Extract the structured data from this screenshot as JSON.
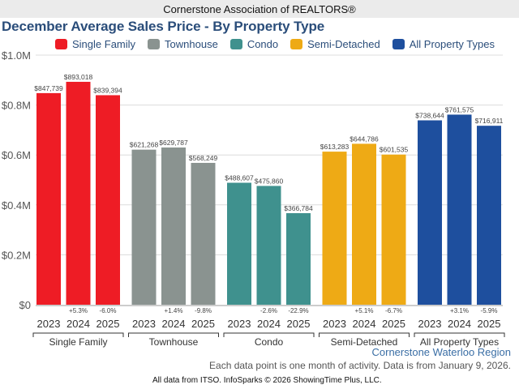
{
  "header": {
    "association": "Cornerstone Association of REALTORS®"
  },
  "footer": {
    "region": "Cornerstone Waterloo Region",
    "note": "Each data point is one month of activity. Data is from January 9, 2026.",
    "credit": "All data from ITSO. InfoSparks © 2026 ShowingTime Plus, LLC."
  },
  "chart_data": {
    "type": "bar",
    "title": "December Average Sales Price - By Property Type",
    "xlabel": "",
    "ylabel": "",
    "ylim": [
      0,
      1000000
    ],
    "yticks": [
      {
        "value": 0,
        "label": "$0"
      },
      {
        "value": 200000,
        "label": "$0.2M"
      },
      {
        "value": 400000,
        "label": "$0.4M"
      },
      {
        "value": 600000,
        "label": "$0.6M"
      },
      {
        "value": 800000,
        "label": "$0.8M"
      },
      {
        "value": 1000000,
        "label": "$1.0M"
      }
    ],
    "grid": true,
    "legend_position": "top",
    "categories": [
      "2023",
      "2024",
      "2025"
    ],
    "series": [
      {
        "name": "Single Family",
        "color": "#ee1c25",
        "values": [
          847739,
          893018,
          839394
        ],
        "labels": [
          "$847,739",
          "$893,018",
          "$839,394"
        ],
        "changes": [
          "",
          "+5.3%",
          "-6.0%"
        ]
      },
      {
        "name": "Townhouse",
        "color": "#8a9390",
        "values": [
          621268,
          629787,
          568249
        ],
        "labels": [
          "$621,268",
          "$629,787",
          "$568,249"
        ],
        "changes": [
          "",
          "+1.4%",
          "-9.8%"
        ]
      },
      {
        "name": "Condo",
        "color": "#3f918e",
        "values": [
          488607,
          475860,
          366784
        ],
        "labels": [
          "$488,607",
          "$475,860",
          "$366,784"
        ],
        "changes": [
          "",
          "-2.6%",
          "-22.9%"
        ]
      },
      {
        "name": "Semi-Detached",
        "color": "#eeaa15",
        "values": [
          613283,
          644786,
          601535
        ],
        "labels": [
          "$613,283",
          "$644,786",
          "$601,535"
        ],
        "changes": [
          "",
          "+5.1%",
          "-6.7%"
        ]
      },
      {
        "name": "All Property Types",
        "color": "#1e4f9e",
        "values": [
          738644,
          761575,
          716911
        ],
        "labels": [
          "$738,644",
          "$761,575",
          "$716,911"
        ],
        "changes": [
          "",
          "+3.1%",
          "-5.9%"
        ]
      }
    ]
  }
}
